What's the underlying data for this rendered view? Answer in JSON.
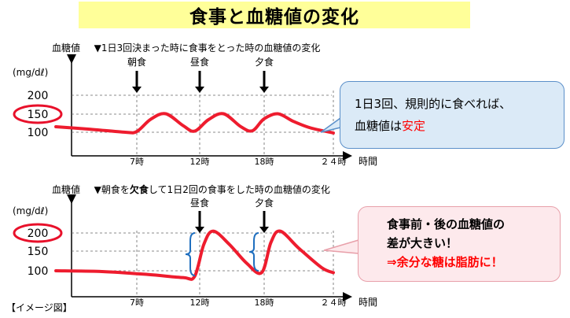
{
  "title": "食事と血糖値の変化",
  "footer": "【イメージ図】",
  "colors": {
    "curve": "#ee1c2e",
    "title_bg": "#ffff99",
    "callout1_bg": "#dbeaf7",
    "callout2_bg": "#fde9ec",
    "highlight": "#ff0000",
    "bracket": "#1f6fbf"
  },
  "chart_data": [
    {
      "type": "line",
      "label_left": "血糖値",
      "title": "▼1日3回決まった時に食事をとった時の血糖値の変化",
      "ylabel": "(mg/dℓ)",
      "xlabel": "時間",
      "y_ticks": [
        "200",
        "150",
        "100"
      ],
      "x_ticks": [
        "7時",
        "12時",
        "18時",
        "２４時"
      ],
      "highlighted_tick": "150",
      "meals": [
        "朝食",
        "昼食",
        "夕食"
      ],
      "ylim": [
        80,
        230
      ],
      "xlim": [
        0,
        25
      ],
      "series": [
        {
          "x": [
            0,
            3,
            6,
            7,
            8.2,
            9.5,
            11,
            12,
            13.2,
            14.5,
            16,
            17,
            18,
            19.2,
            20.5,
            22,
            24
          ],
          "y": [
            115,
            108,
            100,
            102,
            135,
            150,
            118,
            103,
            134,
            150,
            115,
            104,
            136,
            150,
            130,
            112,
            98
          ]
        }
      ],
      "callout": {
        "line1": "1日3回、規則的に食べれば、",
        "line2_prefix": "血糖値は",
        "line2_highlight": "安定"
      }
    },
    {
      "type": "line",
      "label_left": "血糖値",
      "title_prefix": "▼朝食を",
      "title_emphasis": "欠食",
      "title_suffix": "して1日2回の食事をした時の血糖値の変化",
      "ylabel": "(mg/dℓ)",
      "xlabel": "時間",
      "y_ticks": [
        "200",
        "150",
        "100"
      ],
      "x_ticks": [
        "7時",
        "12時",
        "18時",
        "２４時"
      ],
      "highlighted_tick": "200",
      "meals": [
        "昼食",
        "夕食"
      ],
      "ylim": [
        80,
        230
      ],
      "xlim": [
        0,
        25
      ],
      "series": [
        {
          "x": [
            0,
            4,
            8,
            11,
            12,
            12.8,
            13.6,
            15,
            16.5,
            17.8,
            18.6,
            19.4,
            21,
            23,
            24
          ],
          "y": [
            100,
            98,
            90,
            82,
            85,
            170,
            205,
            170,
            120,
            95,
            175,
            205,
            160,
            108,
            95
          ]
        }
      ],
      "callout": {
        "line1": "食事前・後の血糖値の",
        "line2": "差が大きい！",
        "line3": "⇒余分な糖は脂肪に！"
      }
    }
  ]
}
